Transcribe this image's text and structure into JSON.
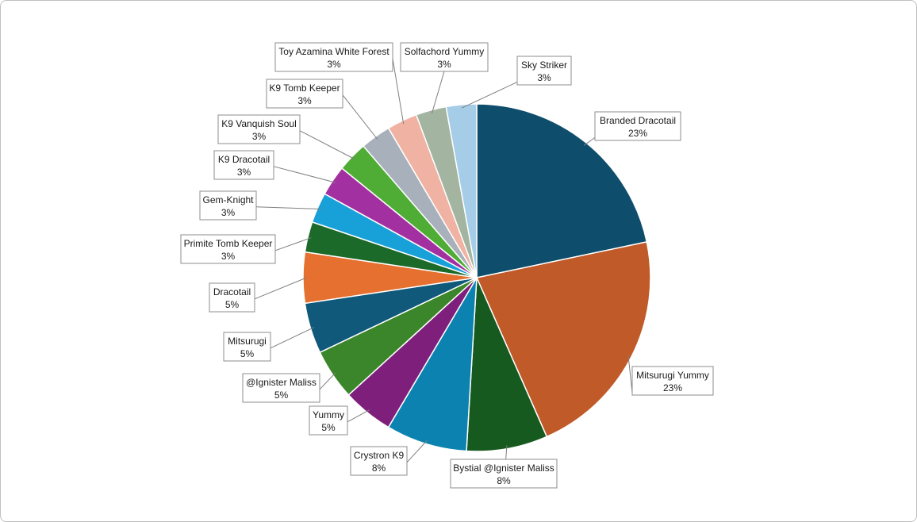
{
  "chart_data": {
    "type": "pie",
    "slices": [
      {
        "label": "Branded Dracotail",
        "value": 23,
        "display": "23%",
        "color": "#0e4d6b"
      },
      {
        "label": "Mitsurugi Yummy",
        "value": 23,
        "display": "23%",
        "color": "#c05a28"
      },
      {
        "label": "Bystial @Ignister Maliss",
        "value": 8,
        "display": "8%",
        "color": "#175a20"
      },
      {
        "label": "Crystron K9",
        "value": 8,
        "display": "8%",
        "color": "#0c82b0"
      },
      {
        "label": "Yummy",
        "value": 5,
        "display": "5%",
        "color": "#7e207b"
      },
      {
        "label": "@Ignister Maliss",
        "value": 5,
        "display": "5%",
        "color": "#3b862a"
      },
      {
        "label": "Mitsurugi",
        "value": 5,
        "display": "5%",
        "color": "#10597a"
      },
      {
        "label": "Dracotail",
        "value": 5,
        "display": "5%",
        "color": "#e5702f"
      },
      {
        "label": "Primite Tomb Keeper",
        "value": 3,
        "display": "3%",
        "color": "#1c6a29"
      },
      {
        "label": "Gem-Knight",
        "value": 3,
        "display": "3%",
        "color": "#18a0d8"
      },
      {
        "label": "K9 Dracotail",
        "value": 3,
        "display": "3%",
        "color": "#a330a0"
      },
      {
        "label": "K9 Vanquish Soul",
        "value": 3,
        "display": "3%",
        "color": "#4fac34"
      },
      {
        "label": "K9 Tomb Keeper",
        "value": 3,
        "display": "3%",
        "color": "#a8b1bb"
      },
      {
        "label": "Toy Azamina White Forest",
        "value": 3,
        "display": "3%",
        "color": "#f0b2a2"
      },
      {
        "label": "Solfachord Yummy",
        "value": 3,
        "display": "3%",
        "color": "#a3b4a0"
      },
      {
        "label": "Sky Striker",
        "value": 3,
        "display": "3%",
        "color": "#a6cde8"
      }
    ]
  }
}
